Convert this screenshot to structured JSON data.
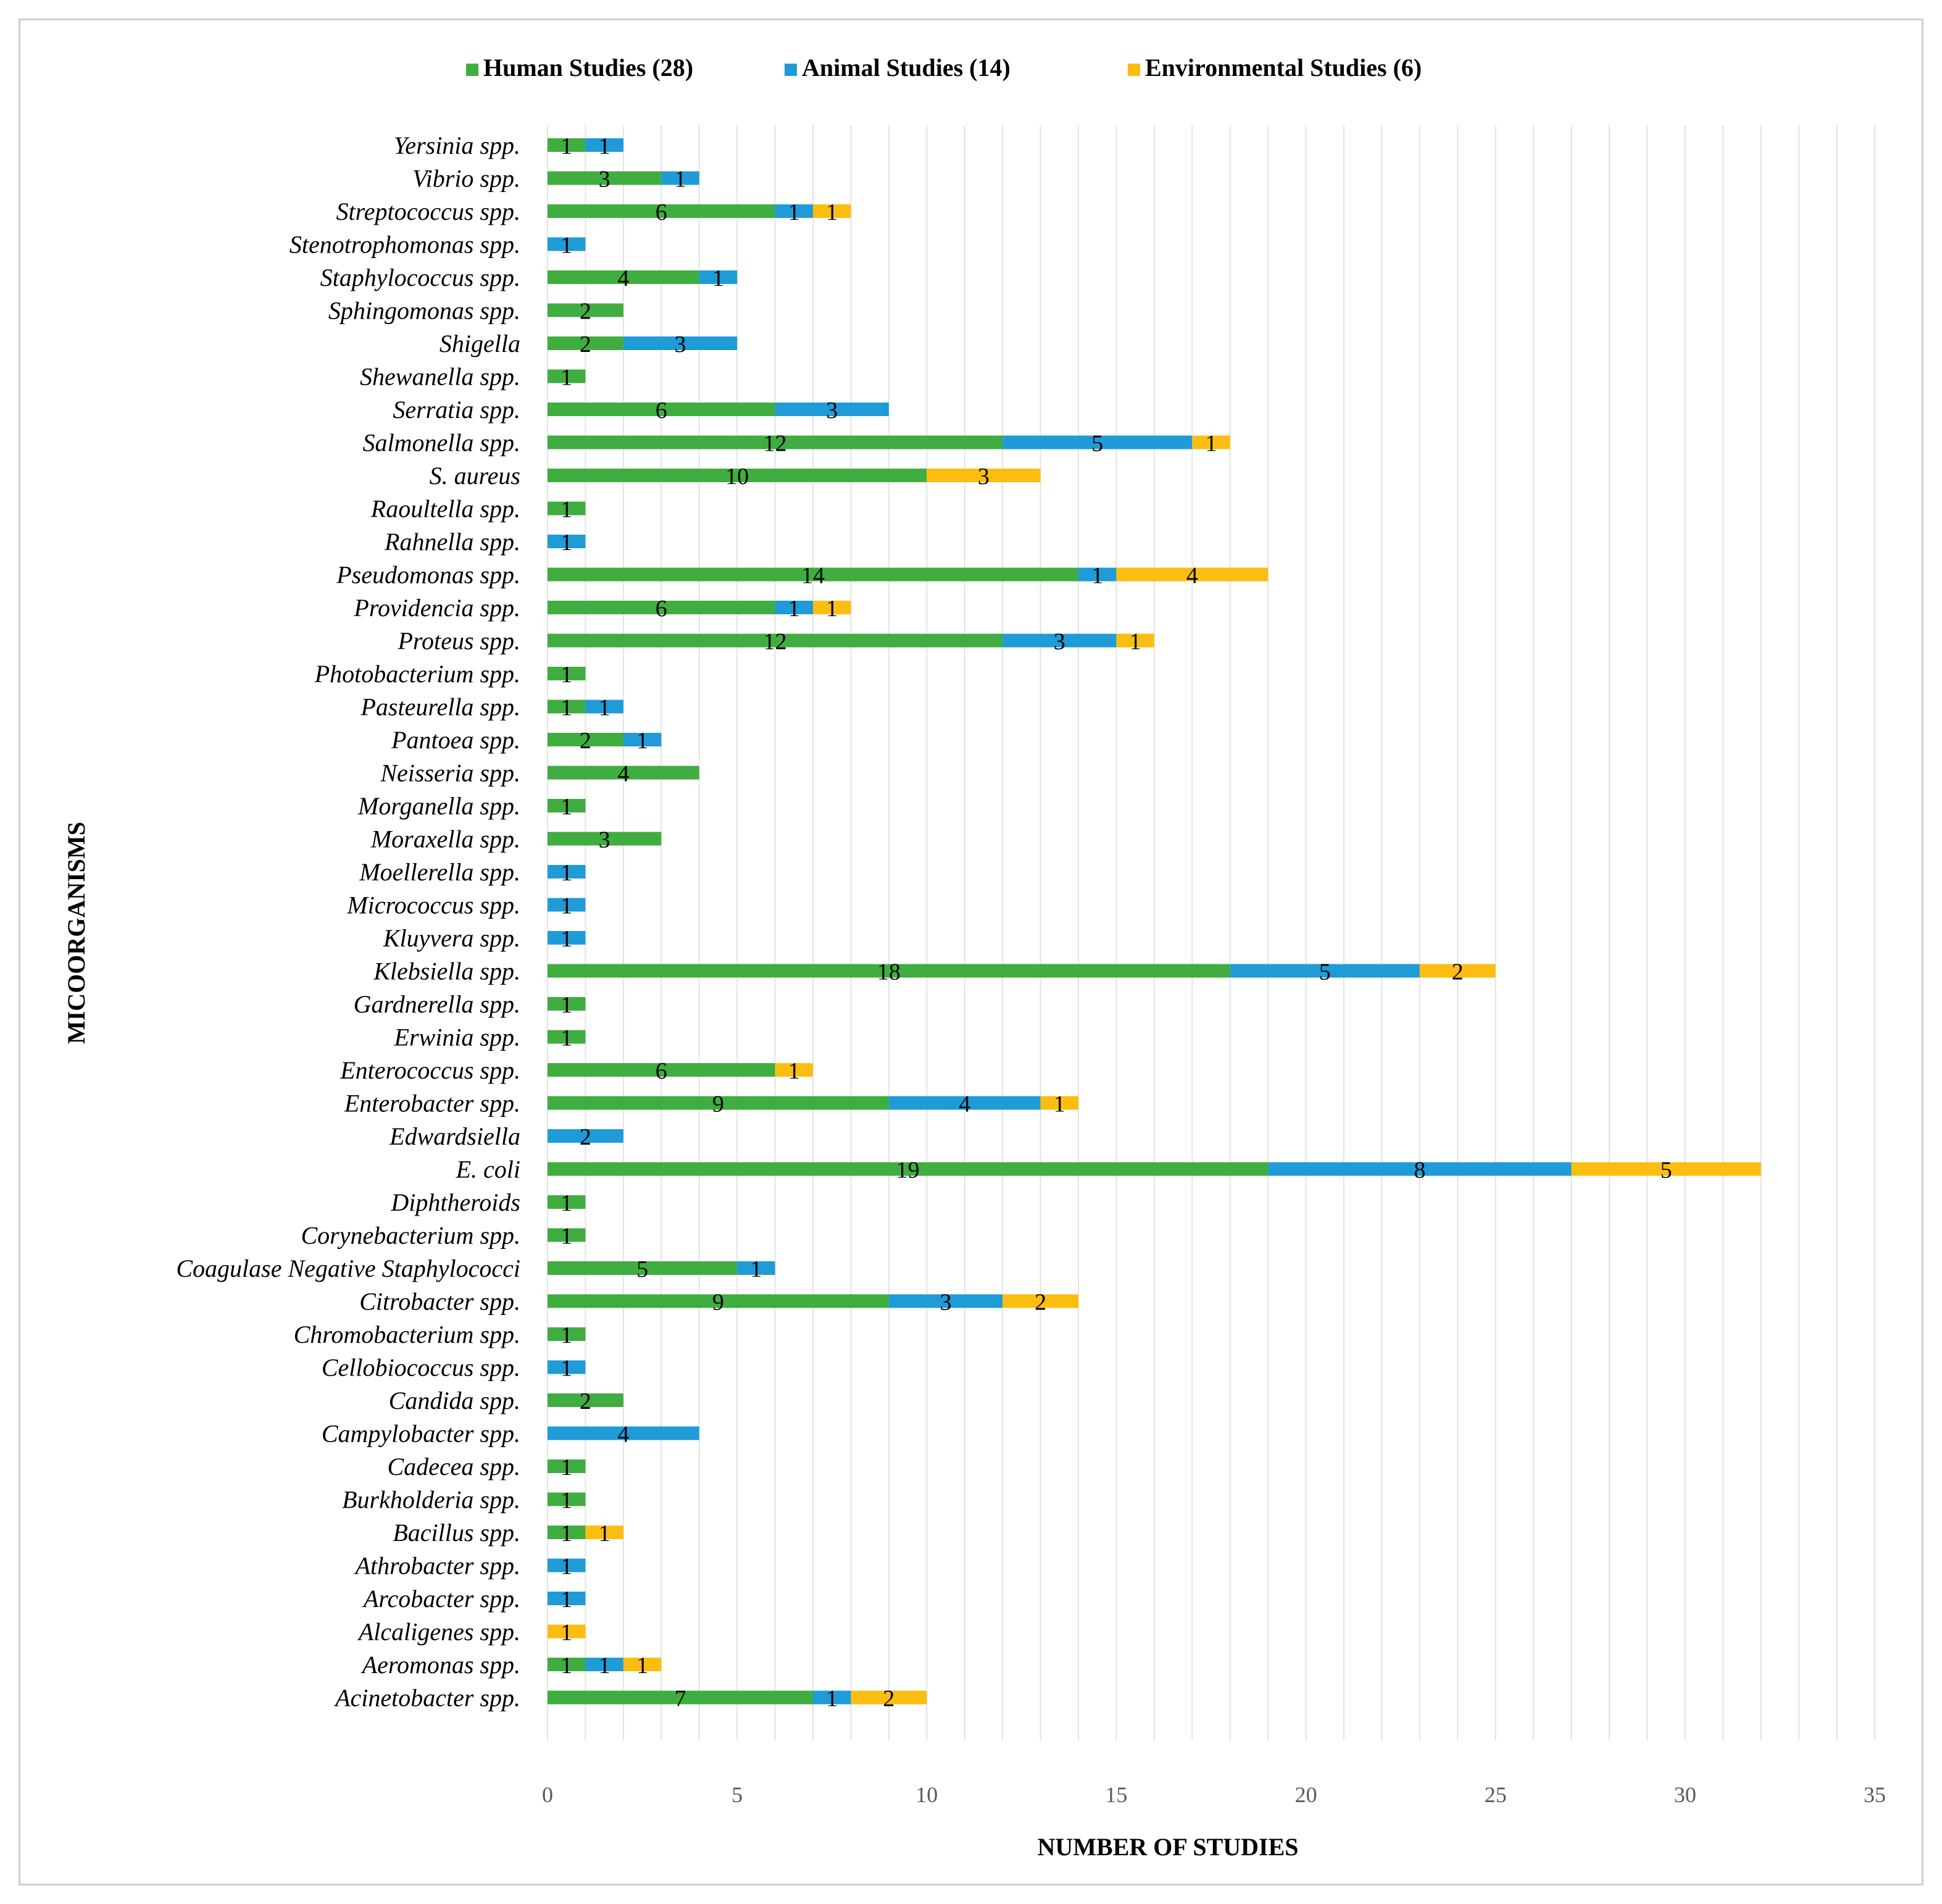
{
  "chart_data": {
    "type": "bar",
    "orientation": "horizontal",
    "stacked": true,
    "title": "",
    "xlabel": "NUMBER OF STUDIES",
    "ylabel": "MICOORGANISMS",
    "xlim": [
      0,
      35
    ],
    "xticks": [
      0,
      5,
      10,
      15,
      20,
      25,
      30,
      35
    ],
    "grid": true,
    "legend_position": "top",
    "categories": [
      "Yersinia spp.",
      "Vibrio spp.",
      "Streptococcus spp.",
      "Stenotrophomonas spp.",
      "Staphylococcus spp.",
      "Sphingomonas spp.",
      "Shigella",
      "Shewanella spp.",
      "Serratia spp.",
      "Salmonella spp.",
      "S. aureus",
      "Raoultella spp.",
      "Rahnella spp.",
      "Pseudomonas spp.",
      "Providencia spp.",
      "Proteus spp.",
      "Photobacterium spp.",
      "Pasteurella spp.",
      "Pantoea spp.",
      "Neisseria spp.",
      "Morganella spp.",
      "Moraxella spp.",
      "Moellerella spp.",
      "Micrococcus spp.",
      "Kluyvera spp.",
      "Klebsiella spp.",
      "Gardnerella spp.",
      "Erwinia spp.",
      "Enterococcus spp.",
      "Enterobacter spp.",
      "Edwardsiella",
      "E. coli",
      "Diphtheroids",
      "Corynebacterium spp.",
      "Coagulase Negative Staphylococci",
      "Citrobacter spp.",
      "Chromobacterium spp.",
      "Cellobiococcus spp.",
      "Candida spp.",
      "Campylobacter spp.",
      "Cadecea spp.",
      "Burkholderia spp.",
      "Bacillus spp.",
      "Athrobacter spp.",
      "Arcobacter spp.",
      "Alcaligenes spp.",
      "Aeromonas spp.",
      "Acinetobacter spp."
    ],
    "series": [
      {
        "name": "Human Studies (28)",
        "color": "#3fad3f",
        "values": [
          1,
          3,
          6,
          0,
          4,
          2,
          2,
          1,
          6,
          12,
          10,
          1,
          0,
          14,
          6,
          12,
          1,
          1,
          2,
          4,
          1,
          3,
          0,
          0,
          0,
          18,
          1,
          1,
          6,
          9,
          0,
          19,
          1,
          1,
          5,
          9,
          1,
          0,
          2,
          0,
          1,
          1,
          1,
          0,
          0,
          0,
          1,
          7
        ]
      },
      {
        "name": "Animal Studies (14)",
        "color": "#1f9bd7",
        "values": [
          1,
          1,
          1,
          1,
          1,
          0,
          3,
          0,
          3,
          5,
          0,
          0,
          1,
          1,
          1,
          3,
          0,
          1,
          1,
          0,
          0,
          0,
          1,
          1,
          1,
          5,
          0,
          0,
          0,
          4,
          2,
          8,
          0,
          0,
          1,
          3,
          0,
          1,
          0,
          4,
          0,
          0,
          0,
          1,
          1,
          0,
          1,
          1
        ]
      },
      {
        "name": "Environmental Studies (6)",
        "color": "#fcbd11",
        "values": [
          0,
          0,
          1,
          0,
          0,
          0,
          0,
          0,
          0,
          1,
          3,
          0,
          0,
          4,
          1,
          1,
          0,
          0,
          0,
          0,
          0,
          0,
          0,
          0,
          0,
          2,
          0,
          0,
          1,
          1,
          0,
          5,
          0,
          0,
          0,
          2,
          0,
          0,
          0,
          0,
          0,
          0,
          1,
          0,
          0,
          1,
          1,
          2
        ]
      }
    ]
  }
}
